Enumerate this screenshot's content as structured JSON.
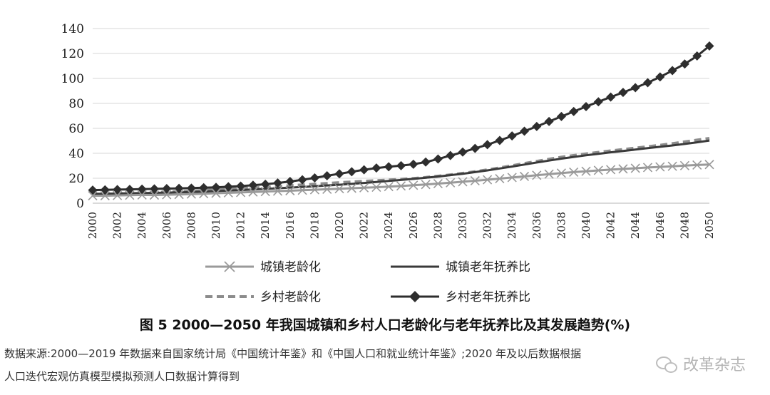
{
  "chart_data": {
    "type": "line",
    "title": "图 5  2000—2050 年我国城镇和乡村人口老龄化与老年抚养比及其发展趋势(%)",
    "xlabel": "",
    "ylabel": "",
    "ylim": [
      0,
      140
    ],
    "yticks": [
      0,
      20,
      40,
      60,
      80,
      100,
      120,
      140
    ],
    "grid": true,
    "legend_position": "bottom",
    "x": [
      2000,
      2001,
      2002,
      2003,
      2004,
      2005,
      2006,
      2007,
      2008,
      2009,
      2010,
      2011,
      2012,
      2013,
      2014,
      2015,
      2016,
      2017,
      2018,
      2019,
      2020,
      2021,
      2022,
      2023,
      2024,
      2025,
      2026,
      2027,
      2028,
      2029,
      2030,
      2031,
      2032,
      2033,
      2034,
      2035,
      2036,
      2037,
      2038,
      2039,
      2040,
      2041,
      2042,
      2043,
      2044,
      2045,
      2046,
      2047,
      2048,
      2049,
      2050
    ],
    "xticks": [
      "2000",
      "2002",
      "2004",
      "2006",
      "2008",
      "2010",
      "2012",
      "2014",
      "2016",
      "2018",
      "2020",
      "2022",
      "2024",
      "2026",
      "2028",
      "2030",
      "2032",
      "2034",
      "2036",
      "2038",
      "2040",
      "2042",
      "2044",
      "2046",
      "2048",
      "2050"
    ],
    "series": [
      {
        "name": "城镇老龄化",
        "color": "#9a9a9a",
        "marker": "x",
        "dashed": false,
        "values": [
          6,
          6,
          6.2,
          6.4,
          6.6,
          6.5,
          6.8,
          7,
          7.3,
          7.6,
          8,
          8.3,
          8.6,
          9,
          9.3,
          9.7,
          10,
          10.4,
          10.8,
          11.2,
          11.6,
          12,
          12.4,
          12.8,
          13.3,
          13.8,
          14.4,
          15,
          15.7,
          16.4,
          17.2,
          18,
          18.8,
          19.7,
          20.6,
          21.5,
          22.4,
          23.3,
          24.1,
          24.9,
          25.6,
          26.3,
          26.9,
          27.5,
          28,
          28.6,
          29.1,
          29.6,
          30.1,
          30.6,
          31
        ]
      },
      {
        "name": "城镇老年抚养比",
        "color": "#3a3a3a",
        "marker": "none",
        "dashed": false,
        "values": [
          7.5,
          7.6,
          7.8,
          8,
          8.1,
          8.3,
          8.5,
          8.7,
          9,
          9.3,
          9.7,
          10.1,
          10.5,
          11,
          11.5,
          12,
          12.5,
          13,
          13.6,
          14.2,
          14.8,
          15.5,
          16.2,
          17,
          17.8,
          18.6,
          19.5,
          20.4,
          21.4,
          22.5,
          23.6,
          24.9,
          26.3,
          27.8,
          29.4,
          31,
          32.6,
          34.2,
          35.7,
          37.1,
          38.4,
          39.6,
          40.8,
          41.9,
          43,
          44.1,
          45.2,
          46.3,
          47.5,
          48.8,
          50.2
        ]
      },
      {
        "name": "乡村老龄化",
        "color": "#8c8c8c",
        "marker": "none",
        "dashed": true,
        "values": [
          7,
          7.2,
          7.6,
          8,
          8.3,
          8.6,
          9,
          9.4,
          9.8,
          10.3,
          10.8,
          11.3,
          11.8,
          12.3,
          12.9,
          13.5,
          14.1,
          14.7,
          15.3,
          15.9,
          16.5,
          17.1,
          17.6,
          18.1,
          18.6,
          19.2,
          19.9,
          20.7,
          21.7,
          22.8,
          24,
          25.3,
          26.8,
          28.4,
          30.1,
          31.9,
          33.6,
          35.3,
          36.9,
          38.3,
          39.6,
          40.8,
          42,
          43.1,
          44.2,
          45.3,
          46.5,
          47.8,
          49.2,
          50.6,
          52
        ]
      },
      {
        "name": "乡村老年抚养比",
        "color": "#2e2e2e",
        "marker": "diamond",
        "dashed": false,
        "values": [
          10.5,
          10.7,
          10.9,
          11.1,
          11.3,
          11.5,
          11.7,
          11.9,
          12.1,
          12.4,
          12.7,
          13.2,
          13.7,
          14.4,
          15.2,
          16.2,
          17.4,
          18.8,
          20.3,
          22,
          23.6,
          25.2,
          26.8,
          28.2,
          29.2,
          30.1,
          31.2,
          33,
          35.4,
          38.2,
          41,
          43.9,
          46.9,
          50.3,
          53.9,
          57.7,
          61.5,
          65.5,
          69.5,
          73.5,
          77.4,
          81.3,
          85.1,
          88.8,
          92.6,
          96.6,
          101.2,
          106.3,
          111.6,
          118,
          126
        ]
      }
    ]
  },
  "source": {
    "line1": "数据来源:2000—2019 年数据来自国家统计局《中国统计年鉴》和《中国人口和就业统计年鉴》;2020 年及以后数据根据",
    "line2": "人口迭代宏观仿真模型模拟预测人口数据计算得到"
  },
  "watermark": {
    "text": "改革杂志",
    "icon": "wechat-icon"
  }
}
